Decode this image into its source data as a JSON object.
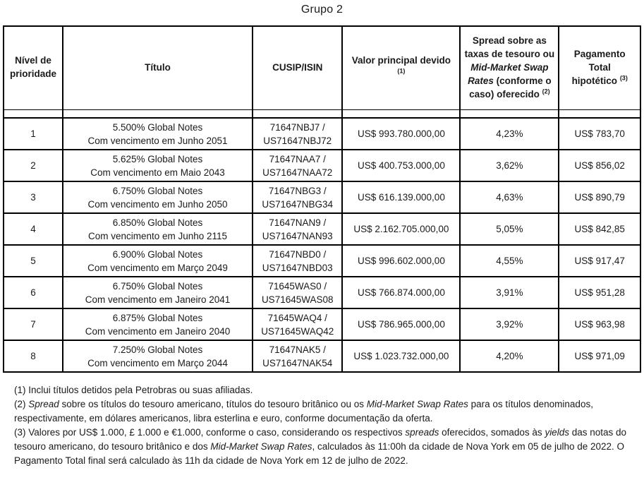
{
  "page": {
    "title": "Grupo 2"
  },
  "table": {
    "header": [
      {
        "segments": [
          {
            "t": "Nível de prioridade"
          }
        ]
      },
      {
        "segments": [
          {
            "t": "Título"
          }
        ]
      },
      {
        "segments": [
          {
            "t": "CUSIP/ISIN"
          }
        ]
      },
      {
        "segments": [
          {
            "t": "Valor principal devido"
          },
          {
            "br": true
          },
          {
            "t": "(1)",
            "sup": true
          }
        ]
      },
      {
        "segments": [
          {
            "t": "Spread sobre as taxas de tesouro ou "
          },
          {
            "t": "Mid-Market Swap Rates",
            "i": true
          },
          {
            "t": " (conforme o caso) oferecido "
          },
          {
            "t": "(2)",
            "sup": true
          }
        ]
      },
      {
        "segments": [
          {
            "t": "Pagamento"
          },
          {
            "br": true
          },
          {
            "t": "Total"
          },
          {
            "br": true
          },
          {
            "t": "hipotético "
          },
          {
            "t": "(3)",
            "sup": true
          }
        ]
      }
    ],
    "rows": [
      {
        "priority": "1",
        "title_line1": "5.500% Global Notes",
        "title_line2": "Com vencimento em Junho 2051",
        "cusip_line1": "71647NBJ7 /",
        "cusip_line2": "US71647NBJ72",
        "principal": "US$ 993.780.000,00",
        "spread": "4,23%",
        "payment": "US$ 783,70"
      },
      {
        "priority": "2",
        "title_line1": "5.625% Global Notes",
        "title_line2": "Com vencimento em Maio 2043",
        "cusip_line1": "71647NAA7 /",
        "cusip_line2": "US71647NAA72",
        "principal": "US$ 400.753.000,00",
        "spread": "3,62%",
        "payment": "US$ 856,02"
      },
      {
        "priority": "3",
        "title_line1": "6.750% Global Notes",
        "title_line2": "Com vencimento em Junho 2050",
        "cusip_line1": "71647NBG3 /",
        "cusip_line2": "US71647NBG34",
        "principal": "US$ 616.139.000,00",
        "spread": "4,63%",
        "payment": "US$ 890,79"
      },
      {
        "priority": "4",
        "title_line1": "6.850% Global Notes",
        "title_line2": "Com vencimento em Junho 2115",
        "cusip_line1": "71647NAN9 /",
        "cusip_line2": "US71647NAN93",
        "principal": "US$ 2.162.705.000,00",
        "spread": "5,05%",
        "payment": "US$ 842,85"
      },
      {
        "priority": "5",
        "title_line1": "6.900% Global Notes",
        "title_line2": "Com vencimento em Março 2049",
        "cusip_line1": "71647NBD0 /",
        "cusip_line2": "US71647NBD03",
        "principal": "US$ 996.602.000,00",
        "spread": "4,55%",
        "payment": "US$ 917,47"
      },
      {
        "priority": "6",
        "title_line1": "6.750% Global Notes",
        "title_line2": "Com vencimento em Janeiro 2041",
        "cusip_line1": "71645WAS0 /",
        "cusip_line2": "US71645WAS08",
        "principal": "US$ 766.874.000,00",
        "spread": "3,91%",
        "payment": "US$ 951,28"
      },
      {
        "priority": "7",
        "title_line1": "6.875% Global Notes",
        "title_line2": "Com vencimento em Janeiro 2040",
        "cusip_line1": "71645WAQ4 /",
        "cusip_line2": "US71645WAQ42",
        "principal": "US$ 786.965.000,00",
        "spread": "3,92%",
        "payment": "US$ 963,98"
      },
      {
        "priority": "8",
        "title_line1": "7.250% Global Notes",
        "title_line2": "Com vencimento em Março 2044",
        "cusip_line1": "71647NAK5 /",
        "cusip_line2": "US71647NAK54",
        "principal": "US$ 1.023.732.000,00",
        "spread": "4,20%",
        "payment": "US$ 971,09"
      }
    ]
  },
  "footnotes": [
    {
      "segments": [
        {
          "t": "(1) Inclui títulos detidos pela Petrobras ou suas afiliadas."
        }
      ]
    },
    {
      "segments": [
        {
          "t": "(2) "
        },
        {
          "t": "Spread",
          "i": true
        },
        {
          "t": " sobre os títulos do tesouro americano, títulos do tesouro britânico ou os "
        },
        {
          "t": "Mid-Market Swap Rates",
          "i": true
        },
        {
          "t": " para os títulos denominados, respectivamente, em dólares americanos, libra esterlina e euro, conforme documentação da oferta."
        }
      ]
    },
    {
      "segments": [
        {
          "t": "(3) Valores por US$ 1.000, £ 1.000 e €1.000, conforme o caso, considerando os respectivos "
        },
        {
          "t": "spreads",
          "i": true
        },
        {
          "t": " oferecidos, somados às "
        },
        {
          "t": "yields",
          "i": true
        },
        {
          "t": " das notas do tesouro americano, do tesouro britânico e dos "
        },
        {
          "t": "Mid-Market Swap Rates",
          "i": true
        },
        {
          "t": ", calculados às 11:00h da cidade de Nova York em 05 de julho de 2022. O Pagamento Total final será calculado às 11h da cidade de Nova York em 12 de julho de 2022."
        }
      ]
    }
  ]
}
